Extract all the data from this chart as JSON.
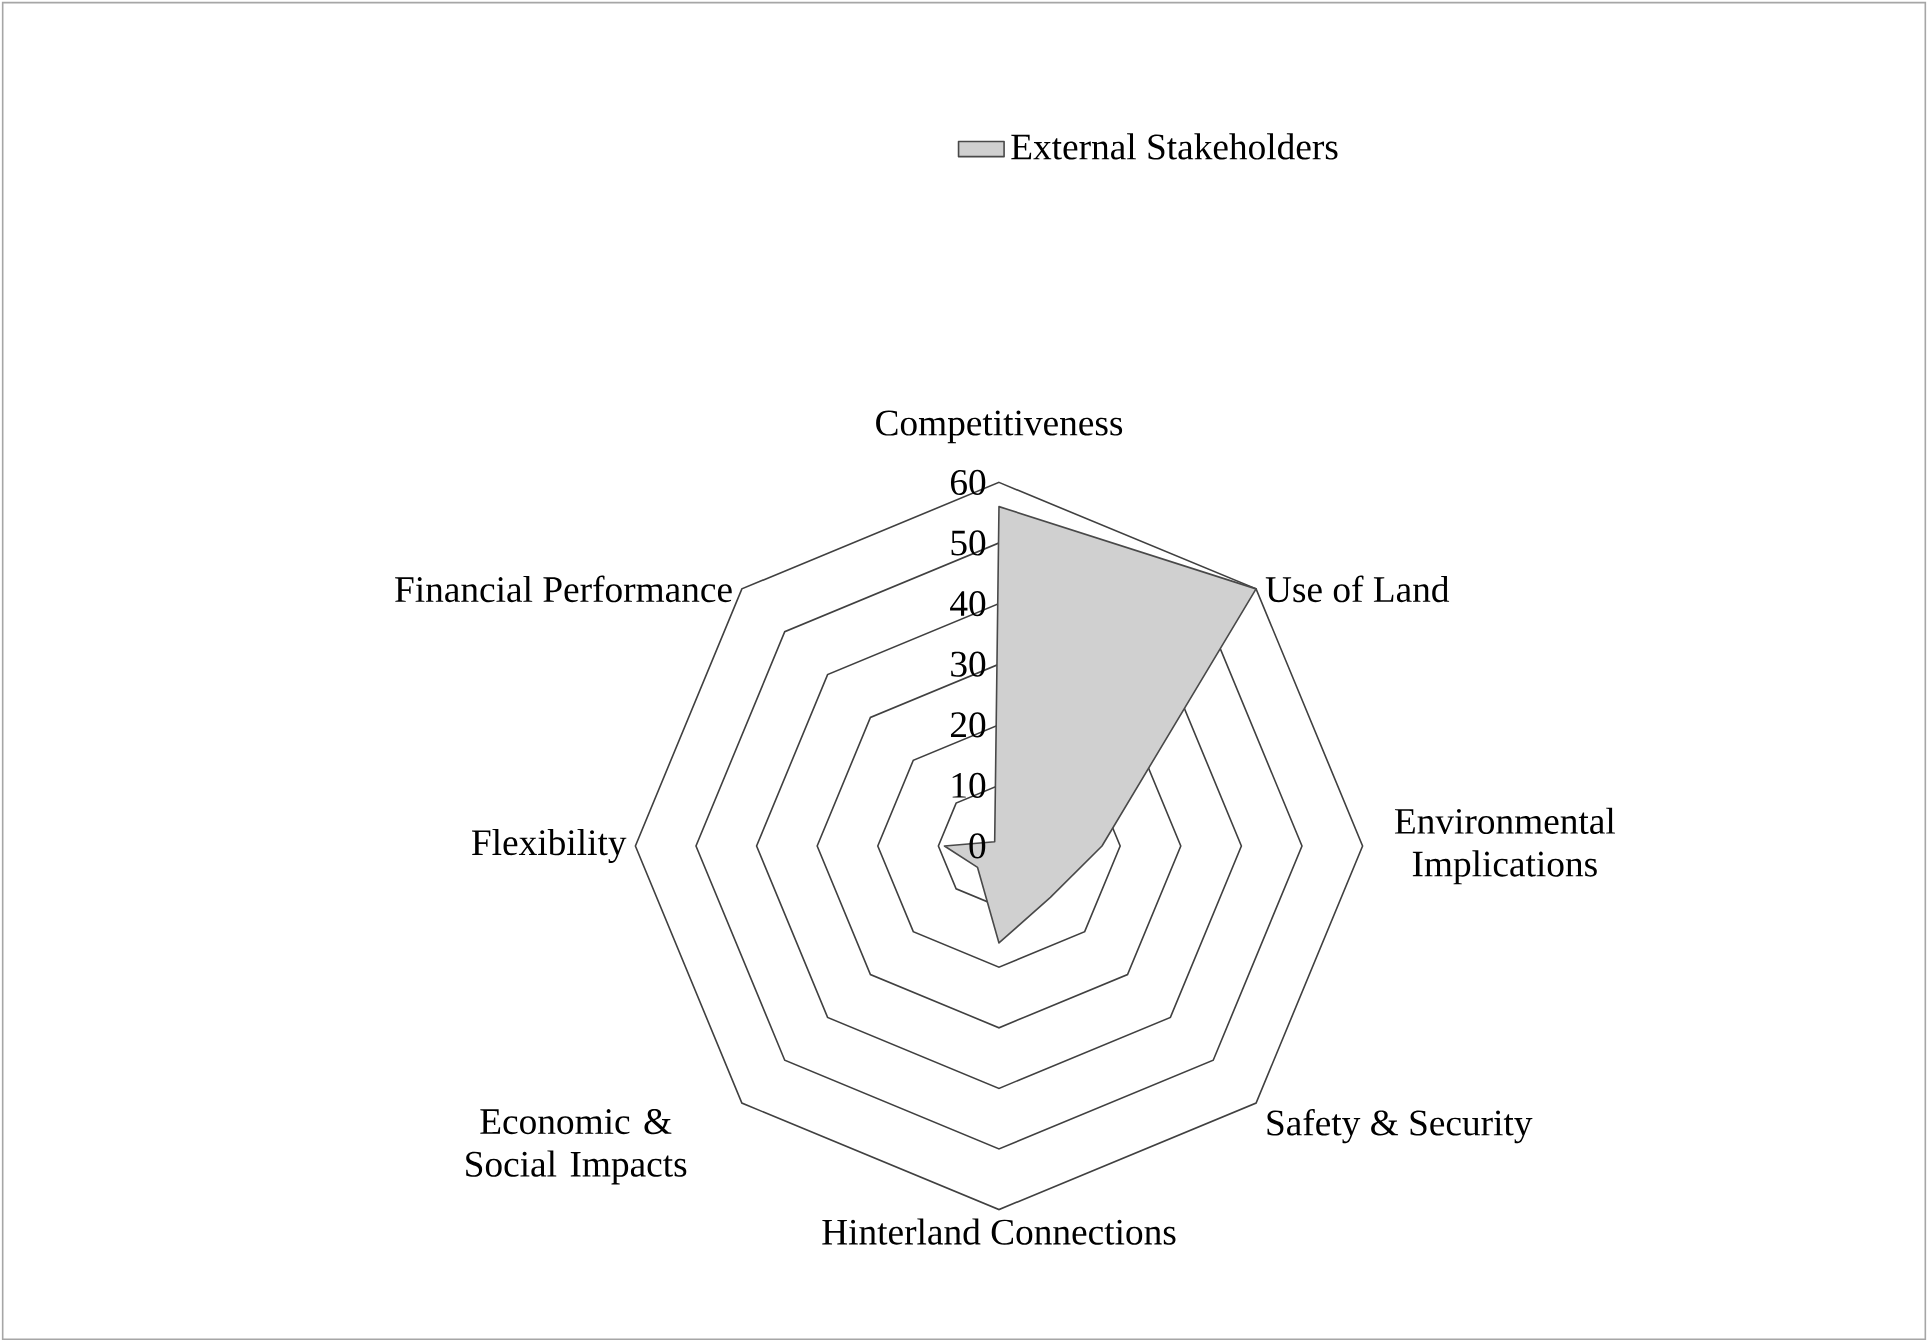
{
  "chart_data": {
    "type": "radar",
    "categories": [
      "Competitiveness",
      "Use of Land",
      "Environmental Implications",
      "Safety & Security",
      "Hinterland Connections",
      "Economic & Social Impacts",
      "Flexibility",
      "Financial Performance"
    ],
    "series": [
      {
        "name": "External Stakeholders",
        "color": "#d0d0d0",
        "values": [
          56,
          60,
          17,
          12,
          16,
          5,
          9,
          1
        ]
      }
    ],
    "ylim": [
      0,
      60
    ],
    "yticks": [
      0,
      10,
      20,
      30,
      40,
      50,
      60
    ],
    "grid": true,
    "legend": "top"
  }
}
